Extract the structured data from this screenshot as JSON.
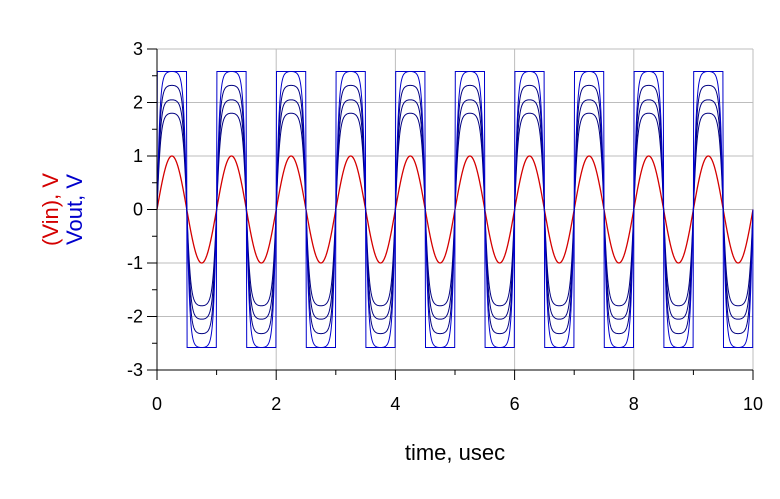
{
  "chart_data": {
    "type": "line",
    "xlabel": "time, usec",
    "ylabel_parts": [
      {
        "text": "(Vin), V",
        "color": "#d40000"
      },
      {
        "text": "Vout, V",
        "color": "#0000cc"
      }
    ],
    "xlim": [
      0,
      10
    ],
    "ylim": [
      -3,
      3
    ],
    "xticks": [
      0,
      2,
      4,
      6,
      8,
      10
    ],
    "xtick_labels": [
      "0",
      "2",
      "4",
      "6",
      "8",
      "10"
    ],
    "yticks": [
      3,
      2,
      1,
      0,
      -1,
      -2,
      -3
    ],
    "ytick_labels": [
      "3",
      "2",
      "1",
      "0",
      "-1",
      "-2",
      "-3"
    ],
    "grid": true,
    "frequency_mhz": 1,
    "series": [
      {
        "role": "Vin",
        "color": "#d40000",
        "amplitude": 1.0,
        "shape": "sine"
      },
      {
        "role": "Vout",
        "color": "#0000cc",
        "amplitude": 2.58,
        "shape": "clipped-square"
      },
      {
        "role": "Vout",
        "color": "#000080",
        "amplitude": 1.8,
        "shape": "soft-clipped"
      },
      {
        "role": "Vout",
        "color": "#000080",
        "amplitude": 2.05,
        "shape": "soft-clipped"
      },
      {
        "role": "Vout",
        "color": "#000080",
        "amplitude": 2.32,
        "shape": "soft-clipped"
      },
      {
        "role": "Vout",
        "color": "#0000cc",
        "amplitude": 2.58,
        "shape": "soft-clipped"
      }
    ]
  }
}
